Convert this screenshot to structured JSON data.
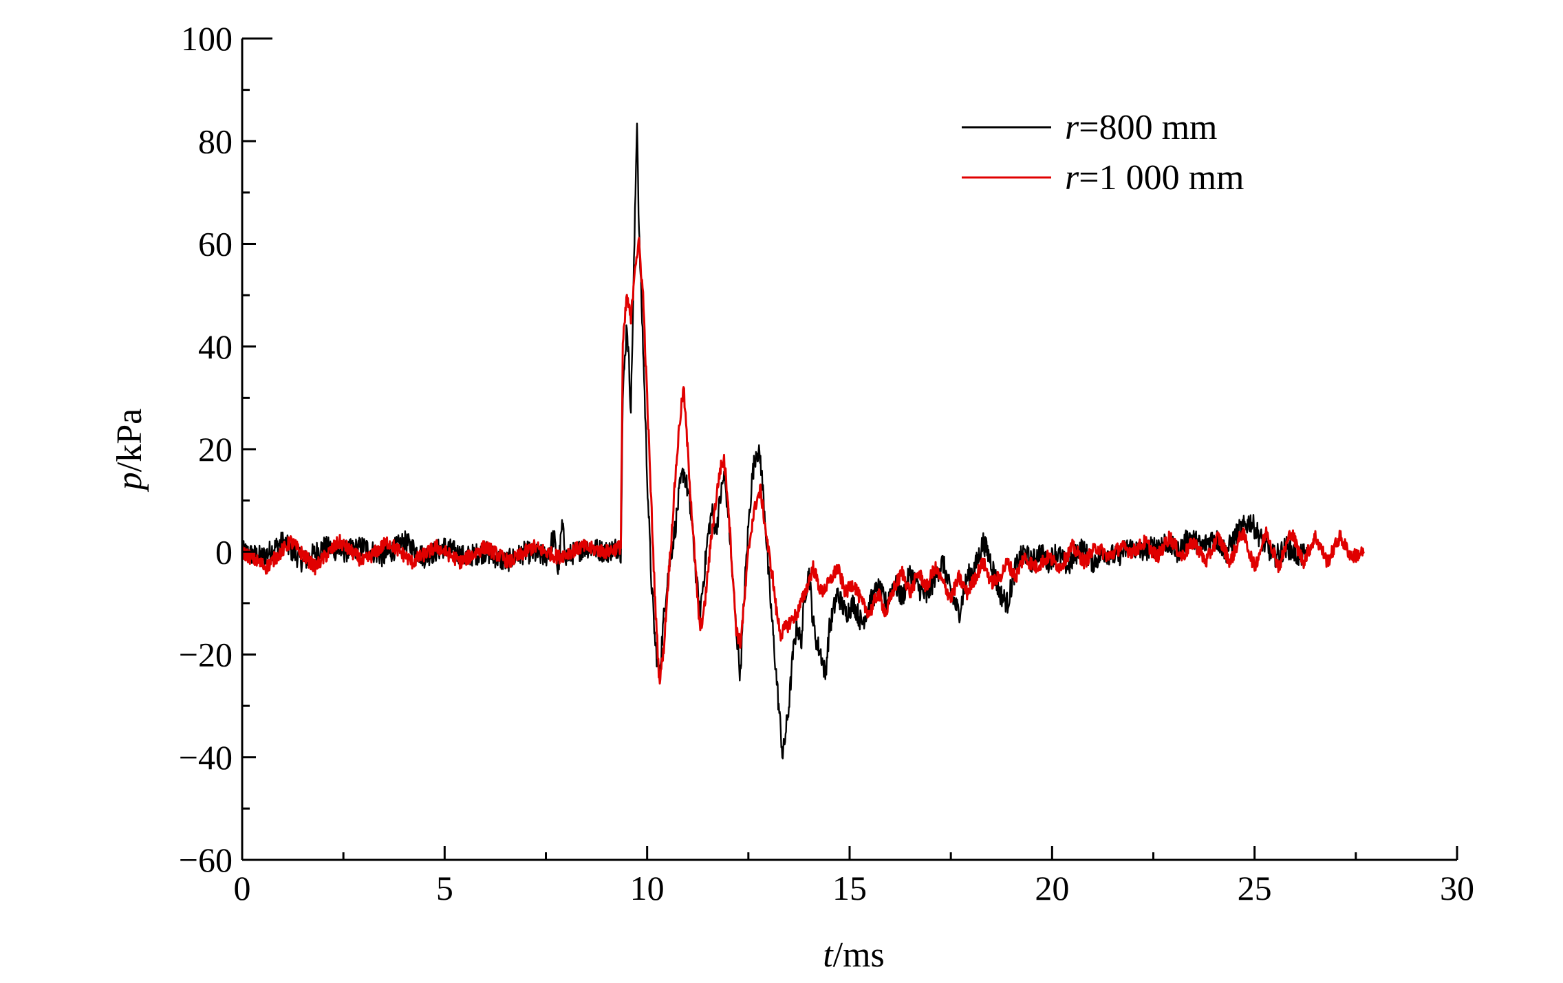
{
  "chart_data": {
    "type": "line",
    "xlabel": {
      "var": "t",
      "unit": "/ms"
    },
    "ylabel": {
      "var": "p",
      "unit": "/kPa"
    },
    "xlim": [
      0,
      30
    ],
    "ylim": [
      -60,
      100
    ],
    "xticks": [
      0,
      5,
      10,
      15,
      20,
      25,
      30
    ],
    "yticks": [
      -60,
      -40,
      -20,
      0,
      20,
      40,
      60,
      80,
      100
    ],
    "xtick_labels": [
      "0",
      "5",
      "10",
      "15",
      "20",
      "25",
      "30"
    ],
    "ytick_labels": [
      "−60",
      "−40",
      "−20",
      "0",
      "20",
      "40",
      "60",
      "80",
      "100"
    ],
    "grid": false,
    "legend_position": "top-right",
    "series": [
      {
        "name": "r=800 mm",
        "legend_var": "r",
        "legend_rest": "=800 mm",
        "color": "#000000",
        "points": [
          [
            0,
            0
          ],
          [
            0.5,
            -1
          ],
          [
            1,
            2
          ],
          [
            1.5,
            -2
          ],
          [
            2,
            1
          ],
          [
            2.5,
            0
          ],
          [
            3,
            1
          ],
          [
            3.5,
            -1
          ],
          [
            4,
            2
          ],
          [
            4.5,
            -1
          ],
          [
            5,
            1
          ],
          [
            5.5,
            -1
          ],
          [
            6,
            0
          ],
          [
            6.5,
            -2
          ],
          [
            7,
            0
          ],
          [
            7.5,
            -1
          ],
          [
            7.7,
            3
          ],
          [
            7.8,
            -4
          ],
          [
            7.9,
            5
          ],
          [
            8,
            -1
          ],
          [
            8.5,
            1
          ],
          [
            9,
            0
          ],
          [
            9.3,
            1
          ],
          [
            9.35,
            0
          ],
          [
            9.4,
            30
          ],
          [
            9.5,
            45
          ],
          [
            9.6,
            28
          ],
          [
            9.7,
            65
          ],
          [
            9.75,
            85
          ],
          [
            9.8,
            62
          ],
          [
            9.9,
            40
          ],
          [
            10,
            15
          ],
          [
            10.1,
            -5
          ],
          [
            10.2,
            -18
          ],
          [
            10.3,
            -24
          ],
          [
            10.4,
            -14
          ],
          [
            10.5,
            -5
          ],
          [
            10.6,
            0
          ],
          [
            10.7,
            5
          ],
          [
            10.8,
            12
          ],
          [
            10.9,
            16
          ],
          [
            11.0,
            12
          ],
          [
            11.1,
            6
          ],
          [
            11.2,
            -4
          ],
          [
            11.3,
            -12
          ],
          [
            11.4,
            -5
          ],
          [
            11.5,
            3
          ],
          [
            11.6,
            8
          ],
          [
            11.7,
            4
          ],
          [
            11.8,
            10
          ],
          [
            11.9,
            15
          ],
          [
            12.0,
            8
          ],
          [
            12.1,
            -4
          ],
          [
            12.2,
            -15
          ],
          [
            12.3,
            -24
          ],
          [
            12.4,
            -8
          ],
          [
            12.5,
            5
          ],
          [
            12.6,
            15
          ],
          [
            12.7,
            20
          ],
          [
            12.8,
            18
          ],
          [
            12.9,
            8
          ],
          [
            13.0,
            -5
          ],
          [
            13.1,
            -15
          ],
          [
            13.2,
            -25
          ],
          [
            13.3,
            -35
          ],
          [
            13.35,
            -40
          ],
          [
            13.5,
            -30
          ],
          [
            13.6,
            -20
          ],
          [
            13.7,
            -14
          ],
          [
            13.8,
            -18
          ],
          [
            13.9,
            -8
          ],
          [
            14,
            -4
          ],
          [
            14.1,
            -14
          ],
          [
            14.2,
            -18
          ],
          [
            14.3,
            -20
          ],
          [
            14.4,
            -24
          ],
          [
            14.5,
            -15
          ],
          [
            14.7,
            -8
          ],
          [
            14.9,
            -12
          ],
          [
            15.1,
            -10
          ],
          [
            15.3,
            -14
          ],
          [
            15.5,
            -10
          ],
          [
            15.7,
            -7
          ],
          [
            15.9,
            -10
          ],
          [
            16.1,
            -6
          ],
          [
            16.3,
            -9
          ],
          [
            16.5,
            -4
          ],
          [
            16.7,
            -7
          ],
          [
            16.9,
            -9
          ],
          [
            17.1,
            -5
          ],
          [
            17.3,
            -2
          ],
          [
            17.5,
            -8
          ],
          [
            17.7,
            -12
          ],
          [
            17.9,
            -5
          ],
          [
            18.1,
            -3
          ],
          [
            18.3,
            2
          ],
          [
            18.5,
            -2
          ],
          [
            18.7,
            -8
          ],
          [
            18.9,
            -10
          ],
          [
            19.1,
            -3
          ],
          [
            19.3,
            0
          ],
          [
            19.5,
            -2
          ],
          [
            19.7,
            0
          ],
          [
            19.9,
            -2
          ],
          [
            20.1,
            0
          ],
          [
            20.4,
            -3
          ],
          [
            20.7,
            1
          ],
          [
            21,
            -2
          ],
          [
            21.3,
            0
          ],
          [
            21.6,
            -1
          ],
          [
            21.9,
            1
          ],
          [
            22.2,
            0
          ],
          [
            22.5,
            1
          ],
          [
            22.8,
            2
          ],
          [
            23.1,
            0
          ],
          [
            23.4,
            3
          ],
          [
            23.7,
            1
          ],
          [
            24,
            3
          ],
          [
            24.3,
            0
          ],
          [
            24.6,
            4
          ],
          [
            24.9,
            6
          ],
          [
            25.2,
            2
          ],
          [
            25.5,
            -1
          ],
          [
            25.8,
            1
          ],
          [
            26.1,
            -1
          ],
          [
            26.3,
            0
          ]
        ]
      },
      {
        "name": "r=1 000 mm",
        "legend_var": "r",
        "legend_rest": "=1 000 mm",
        "color": "#e00000",
        "points": [
          [
            0,
            0
          ],
          [
            0.6,
            -3
          ],
          [
            1.2,
            2
          ],
          [
            1.8,
            -3
          ],
          [
            2.4,
            2
          ],
          [
            3.0,
            -2
          ],
          [
            3.6,
            2
          ],
          [
            4.2,
            -2
          ],
          [
            4.8,
            1
          ],
          [
            5.4,
            -2
          ],
          [
            6.0,
            1
          ],
          [
            6.6,
            -2
          ],
          [
            7.2,
            1
          ],
          [
            7.8,
            -1
          ],
          [
            8.4,
            1
          ],
          [
            9.0,
            0
          ],
          [
            9.35,
            1
          ],
          [
            9.4,
            40
          ],
          [
            9.5,
            50
          ],
          [
            9.6,
            45
          ],
          [
            9.7,
            56
          ],
          [
            9.8,
            60
          ],
          [
            9.9,
            50
          ],
          [
            10,
            30
          ],
          [
            10.1,
            10
          ],
          [
            10.2,
            -10
          ],
          [
            10.3,
            -25
          ],
          [
            10.4,
            -20
          ],
          [
            10.5,
            -8
          ],
          [
            10.6,
            3
          ],
          [
            10.7,
            15
          ],
          [
            10.8,
            25
          ],
          [
            10.9,
            32
          ],
          [
            11.0,
            20
          ],
          [
            11.1,
            8
          ],
          [
            11.2,
            -4
          ],
          [
            11.3,
            -15
          ],
          [
            11.4,
            -12
          ],
          [
            11.5,
            -4
          ],
          [
            11.6,
            4
          ],
          [
            11.7,
            10
          ],
          [
            11.8,
            16
          ],
          [
            11.9,
            18
          ],
          [
            12.0,
            10
          ],
          [
            12.1,
            -3
          ],
          [
            12.2,
            -15
          ],
          [
            12.3,
            -18
          ],
          [
            12.4,
            -10
          ],
          [
            12.5,
            0
          ],
          [
            12.6,
            6
          ],
          [
            12.7,
            10
          ],
          [
            12.8,
            12
          ],
          [
            12.9,
            6
          ],
          [
            13.0,
            0
          ],
          [
            13.1,
            -5
          ],
          [
            13.2,
            -12
          ],
          [
            13.3,
            -16
          ],
          [
            13.5,
            -14
          ],
          [
            13.7,
            -12
          ],
          [
            13.9,
            -8
          ],
          [
            14.1,
            -3
          ],
          [
            14.3,
            -8
          ],
          [
            14.5,
            -6
          ],
          [
            14.7,
            -3
          ],
          [
            14.9,
            -8
          ],
          [
            15.1,
            -6
          ],
          [
            15.3,
            -10
          ],
          [
            15.5,
            -12
          ],
          [
            15.7,
            -8
          ],
          [
            15.9,
            -12
          ],
          [
            16.1,
            -7
          ],
          [
            16.3,
            -4
          ],
          [
            16.5,
            -8
          ],
          [
            16.7,
            -4
          ],
          [
            16.9,
            -7
          ],
          [
            17.1,
            -3
          ],
          [
            17.3,
            -6
          ],
          [
            17.5,
            -9
          ],
          [
            17.7,
            -5
          ],
          [
            17.9,
            -8
          ],
          [
            18.1,
            -5
          ],
          [
            18.3,
            -2
          ],
          [
            18.5,
            -6
          ],
          [
            18.7,
            -5
          ],
          [
            18.9,
            -2
          ],
          [
            19.1,
            -5
          ],
          [
            19.3,
            -1
          ],
          [
            19.6,
            -3
          ],
          [
            19.9,
            -1
          ],
          [
            20.2,
            -3
          ],
          [
            20.5,
            1
          ],
          [
            20.8,
            -2
          ],
          [
            21.1,
            1
          ],
          [
            21.4,
            -1
          ],
          [
            21.7,
            1
          ],
          [
            22.0,
            0
          ],
          [
            22.3,
            2
          ],
          [
            22.6,
            -1
          ],
          [
            22.9,
            3
          ],
          [
            23.2,
            -1
          ],
          [
            23.5,
            2
          ],
          [
            23.8,
            -2
          ],
          [
            24.1,
            3
          ],
          [
            24.4,
            -2
          ],
          [
            24.7,
            4
          ],
          [
            25.0,
            -3
          ],
          [
            25.3,
            4
          ],
          [
            25.6,
            -3
          ],
          [
            25.9,
            4
          ],
          [
            26.2,
            -2
          ],
          [
            26.5,
            3
          ],
          [
            26.8,
            -2
          ],
          [
            27.1,
            3
          ],
          [
            27.4,
            -1
          ],
          [
            27.7,
            0
          ]
        ]
      }
    ]
  }
}
